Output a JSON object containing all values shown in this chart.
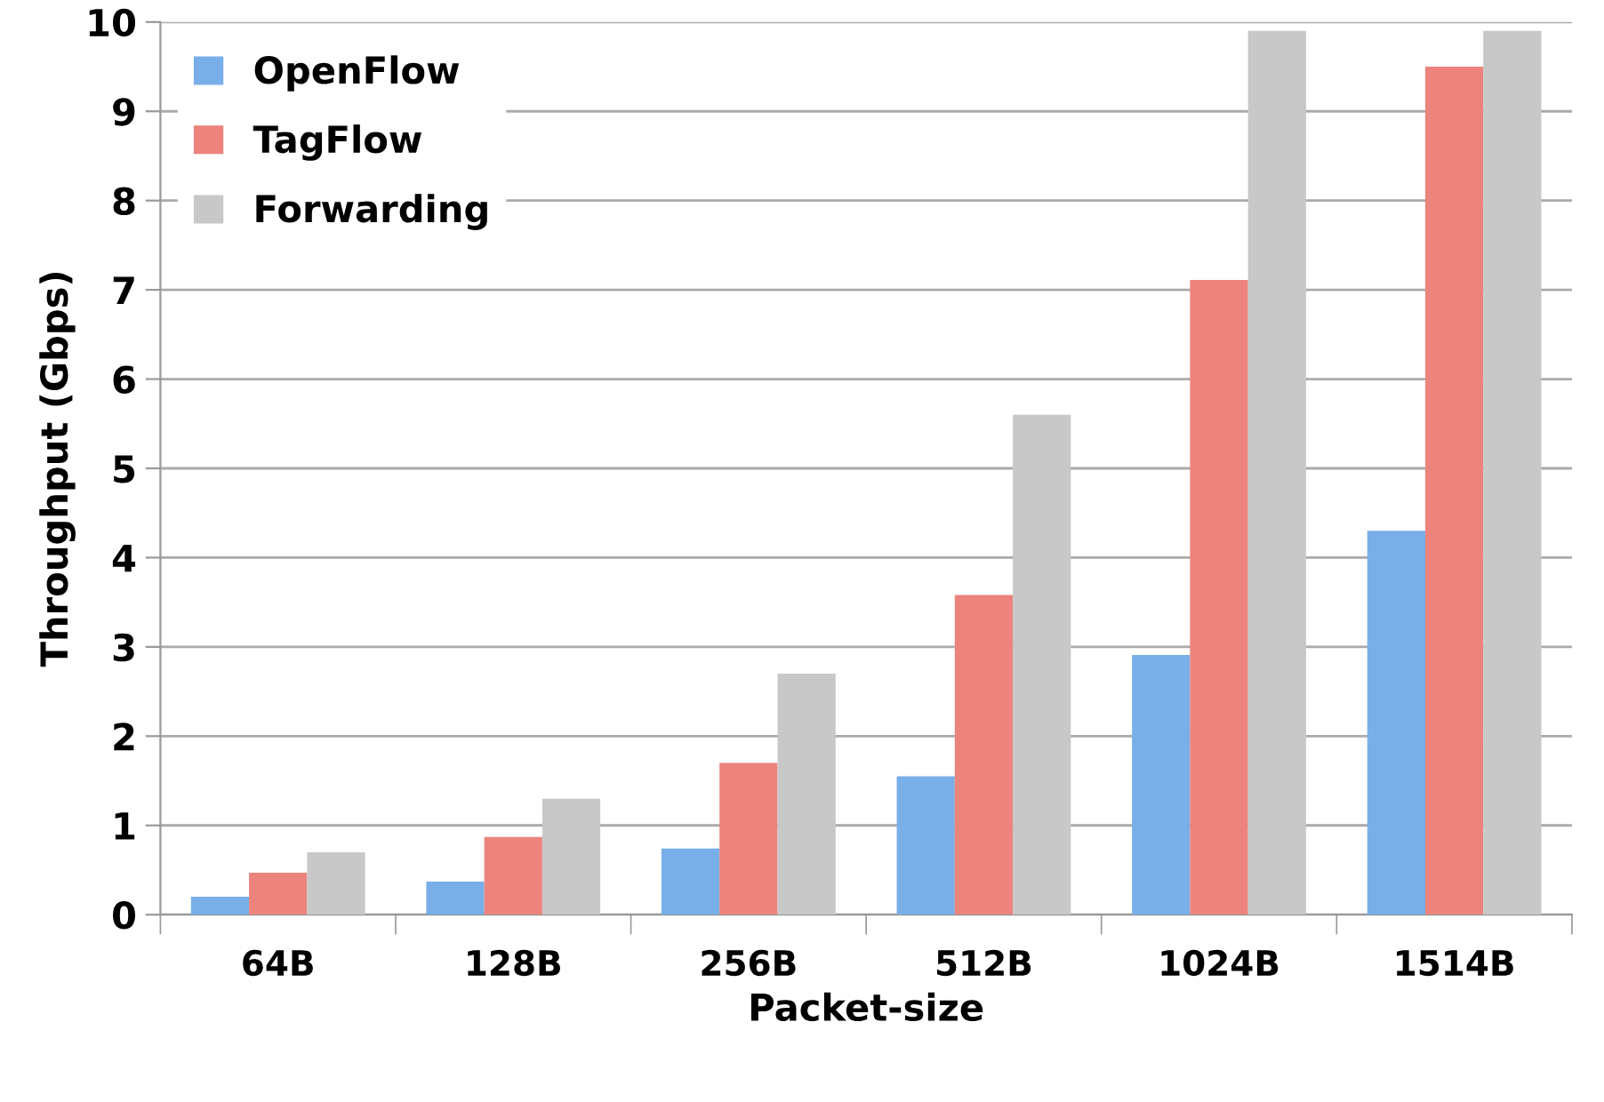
{
  "chart_data": {
    "type": "bar",
    "xlabel": "Packet-size",
    "ylabel": "Throughput (Gbps)",
    "categories": [
      "64B",
      "128B",
      "256B",
      "512B",
      "1024B",
      "1514B"
    ],
    "series": [
      {
        "name": "OpenFlow",
        "color": "#79aee8",
        "values": [
          0.2,
          0.37,
          0.74,
          1.55,
          2.91,
          4.3
        ]
      },
      {
        "name": "TagFlow",
        "color": "#ec837c",
        "values": [
          0.47,
          0.87,
          1.7,
          3.58,
          7.11,
          9.5
        ]
      },
      {
        "name": "Forwarding",
        "color": "#c8c8c8",
        "values": [
          0.7,
          1.3,
          2.7,
          5.6,
          9.9,
          9.9
        ]
      }
    ],
    "ylim": [
      0,
      10
    ],
    "yticks": [
      0,
      1,
      2,
      3,
      4,
      5,
      6,
      7,
      8,
      9,
      10
    ],
    "grid": "y",
    "legend": "top left"
  }
}
